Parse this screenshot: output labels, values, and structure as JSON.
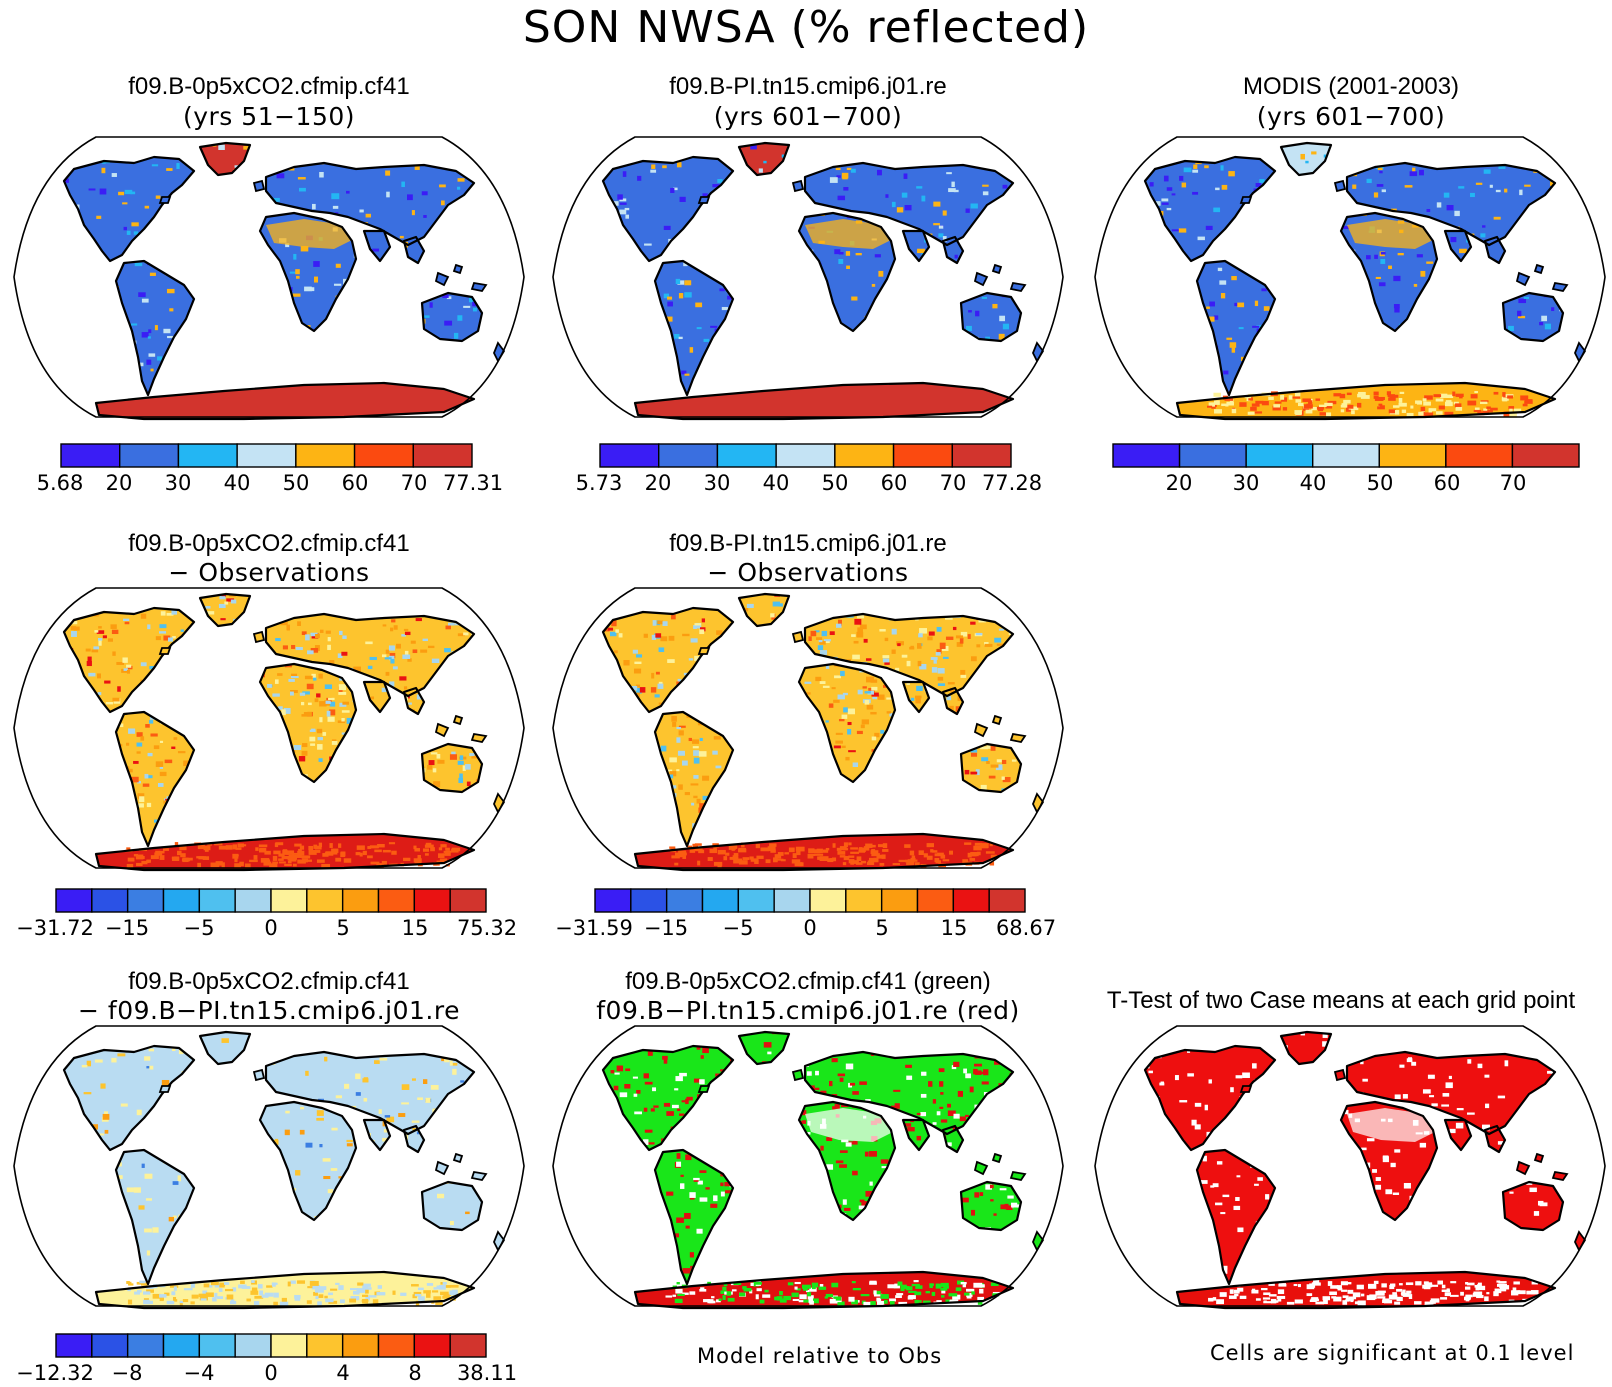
{
  "title": "SON NWSA (% reflected)",
  "panels": [
    {
      "t1": "f09.B-0p5xCO2.cfmip.cf41",
      "t2": "(yrs 51−150)",
      "style": "blue",
      "ant": "#d2342d"
    },
    {
      "t1": "f09.B-PI.tn15.cmip6.j01.re",
      "t2": "(yrs 601−700)",
      "style": "blue",
      "ant": "#d2342d"
    },
    {
      "t1": "MODIS (2001-2003)",
      "t2": "(yrs 601−700)",
      "style": "blue",
      "ant": "#fdb414"
    },
    {
      "t1": "f09.B-0p5xCO2.cfmip.cf41",
      "t2": "− Observations",
      "style": "warm",
      "ant": "#dd1c16"
    },
    {
      "t1": "f09.B-PI.tn15.cmip6.j01.re",
      "t2": "− Observations",
      "style": "warm",
      "ant": "#dd1c16"
    },
    {
      "t1": "f09.B-0p5xCO2.cfmip.cf41",
      "t2": "− f09.B−PI.tn15.cmip6.j01.re",
      "style": "pale",
      "ant": "#fdf29a"
    },
    {
      "t1": "f09.B-0p5xCO2.cfmip.cf41 (green)",
      "t2": "f09.B−PI.tn15.cmip6.j01.re (red)",
      "style": "greenred",
      "ant": "#e01010"
    },
    {
      "t1": "T-Test of two Case means at each grid point",
      "t2": "",
      "style": "red",
      "ant": "#e8100c"
    }
  ],
  "colorbars": [
    {
      "colors": [
        "#3a1df5",
        "#3a6fe0",
        "#23b6f3",
        "#c4e3f4",
        "#fdb414",
        "#fb4a10",
        "#d2342d"
      ],
      "labels": [
        "5.68",
        "20",
        "30",
        "40",
        "50",
        "60",
        "70",
        "77.31"
      ]
    },
    {
      "colors": [
        "#3a1df5",
        "#3a6fe0",
        "#23b6f3",
        "#c4e3f4",
        "#fdb414",
        "#fb4a10",
        "#d2342d"
      ],
      "labels": [
        "5.73",
        "20",
        "30",
        "40",
        "50",
        "60",
        "70",
        "77.28"
      ]
    },
    {
      "colors": [
        "#3a1df5",
        "#3a6fe0",
        "#23b6f3",
        "#c4e3f4",
        "#fdb414",
        "#fb4a10",
        "#d2342d"
      ],
      "labels": [
        "20",
        "30",
        "40",
        "50",
        "60",
        "70"
      ]
    },
    {
      "colors": [
        "#3a1df5",
        "#2b52e6",
        "#3b7ee2",
        "#24a8f0",
        "#4fc0ef",
        "#a8d6ee",
        "#fdf29a",
        "#fdc42e",
        "#fb9d10",
        "#fb5c12",
        "#ea1212",
        "#d2342d"
      ],
      "labels": [
        "−31.72",
        "−15",
        "−5",
        "0",
        "5",
        "15",
        "75.32"
      ]
    },
    {
      "colors": [
        "#3a1df5",
        "#2b52e6",
        "#3b7ee2",
        "#24a8f0",
        "#4fc0ef",
        "#a8d6ee",
        "#fdf29a",
        "#fdc42e",
        "#fb9d10",
        "#fb5c12",
        "#ea1212",
        "#d2342d"
      ],
      "labels": [
        "−31.59",
        "−15",
        "−5",
        "0",
        "5",
        "15",
        "68.67"
      ]
    },
    {
      "colors": [
        "#3a1df5",
        "#2b52e6",
        "#3b7ee2",
        "#24a8f0",
        "#4fc0ef",
        "#a8d6ee",
        "#fdf29a",
        "#fdc42e",
        "#fb9d10",
        "#fb5c12",
        "#ea1212",
        "#d2342d"
      ],
      "labels": [
        "−12.32",
        "−8",
        "−4",
        "0",
        "4",
        "8",
        "38.11"
      ]
    }
  ],
  "footers": {
    "model_relative": "Model relative to Obs",
    "significance": "Cells are significant at 0.1 level"
  }
}
